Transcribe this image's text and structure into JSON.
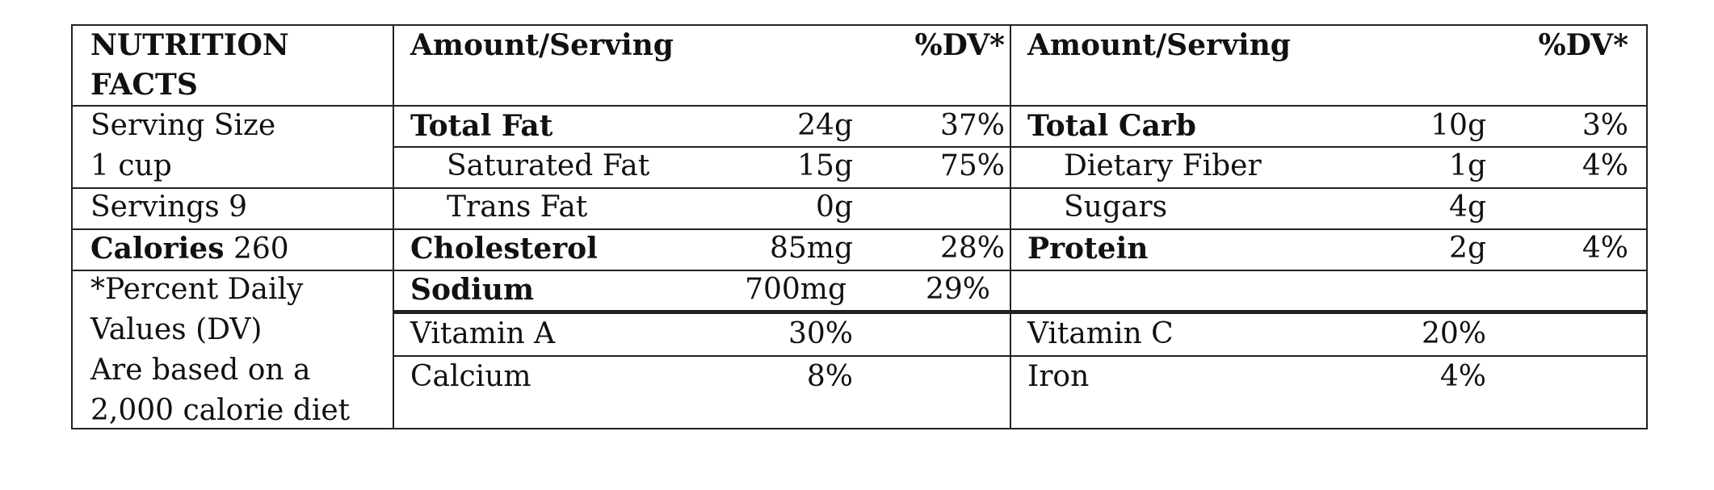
{
  "title": [
    "NUTRITION",
    "FACTS"
  ],
  "headers": {
    "amount_serving": "Amount/Serving",
    "dv": "%DV*"
  },
  "left": {
    "serving_size": [
      "Serving Size",
      "1 cup"
    ],
    "servings": "Servings 9",
    "calories_label": "Calories",
    "calories_value": "260",
    "footnote": [
      "*Percent Daily",
      "Values (DV)",
      "Are based on a",
      "2,000 calorie diet"
    ]
  },
  "nutrients_left": [
    {
      "name": "Total Fat",
      "amount": "24g",
      "dv": "37%"
    },
    {
      "name": "Saturated Fat",
      "amount": "15g",
      "dv": "75%"
    },
    {
      "name": "Trans Fat",
      "amount": "0g",
      "dv": ""
    },
    {
      "name": "Cholesterol",
      "amount": "85mg",
      "dv": "28%"
    },
    {
      "name": "Sodium",
      "amount": "700mg",
      "dv": "29%"
    }
  ],
  "nutrients_right": [
    {
      "name": "Total Carb",
      "amount": "10g",
      "dv": "3%"
    },
    {
      "name": "Dietary Fiber",
      "amount": "1g",
      "dv": "4%"
    },
    {
      "name": "Sugars",
      "amount": "4g",
      "dv": ""
    },
    {
      "name": "Protein",
      "amount": "2g",
      "dv": "4%"
    }
  ],
  "vitamins": [
    {
      "name": "Vitamin A",
      "value": "30%"
    },
    {
      "name": "Vitamin C",
      "value": "20%"
    },
    {
      "name": "Calcium",
      "value": "8%"
    },
    {
      "name": "Iron",
      "value": "4%"
    }
  ]
}
